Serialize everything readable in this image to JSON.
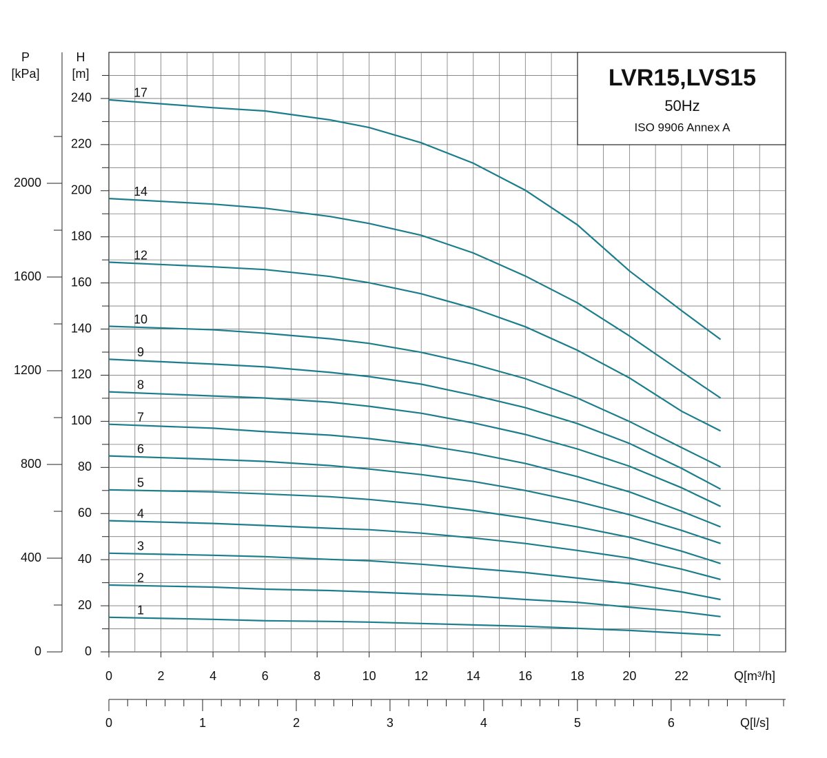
{
  "chart_data": {
    "type": "line",
    "title": "LVR15,LVS15",
    "subtitle": "50Hz",
    "note": "ISO 9906 Annex A",
    "xlabel": "Q[m³/h]",
    "ylabel": "H",
    "ylabel_unit": "[m]",
    "plabel": "P",
    "plabel_unit": "[kPa]",
    "qlabel": "Q[l/s]",
    "x": [
      0,
      4,
      6,
      8.5,
      10,
      12,
      14,
      16,
      18,
      20,
      22,
      23.5
    ],
    "color": "#1b7d8c",
    "series": [
      {
        "name": "17",
        "values": [
          239.4,
          236,
          234.6,
          230.7,
          227.4,
          220.8,
          211.9,
          200.2,
          185.2,
          165.2,
          148,
          135.5
        ]
      },
      {
        "name": "14",
        "values": [
          196.6,
          194.2,
          192.4,
          188.8,
          185.8,
          180.7,
          173,
          163,
          151.4,
          137,
          121.5,
          110.1
        ]
      },
      {
        "name": "12",
        "values": [
          169,
          167,
          165.8,
          162.8,
          160.1,
          155.3,
          149,
          141,
          130.8,
          118.8,
          104.4,
          95.8
        ]
      },
      {
        "name": "10",
        "values": [
          141.2,
          139.7,
          138.2,
          135.8,
          133.8,
          129.9,
          124.8,
          118.5,
          110.1,
          99.9,
          88.6,
          80.2
        ]
      },
      {
        "name": "9",
        "values": [
          126.9,
          124.8,
          123.6,
          121.2,
          119.4,
          116.1,
          111.3,
          105.9,
          99,
          90.4,
          79.6,
          70.6
        ]
      },
      {
        "name": "8",
        "values": [
          112.8,
          111,
          110.1,
          108.3,
          106.5,
          103.5,
          99.3,
          94.3,
          88,
          80.5,
          71.2,
          63.1
        ]
      },
      {
        "name": "7",
        "values": [
          98.7,
          97,
          95.5,
          94,
          92.5,
          89.8,
          86.2,
          81.7,
          76,
          69.4,
          61,
          54.2
        ]
      },
      {
        "name": "6",
        "values": [
          85,
          83.5,
          82.6,
          80.8,
          79.3,
          76.9,
          73.9,
          70,
          65.2,
          59.5,
          52.7,
          47
        ]
      },
      {
        "name": "5",
        "values": [
          70.3,
          69.4,
          68.5,
          67.3,
          66.1,
          64,
          61.3,
          58,
          54.2,
          49.7,
          43.7,
          38.3
        ]
      },
      {
        "name": "4",
        "values": [
          56.9,
          55.7,
          54.8,
          53.6,
          53,
          51.5,
          49.4,
          47,
          44,
          40.7,
          35.9,
          31.4
        ]
      },
      {
        "name": "3",
        "values": [
          42.8,
          41.9,
          41.3,
          40.1,
          39.5,
          38,
          36.2,
          34.4,
          32,
          29.6,
          26,
          22.7
        ]
      },
      {
        "name": "2",
        "values": [
          29,
          28.1,
          27.2,
          26.6,
          26,
          25.1,
          24.2,
          22.7,
          21.5,
          19.4,
          17.4,
          15.3
        ]
      },
      {
        "name": "1",
        "values": [
          15,
          14.1,
          13.5,
          13.2,
          12.9,
          12.3,
          11.7,
          11.1,
          10.2,
          9.3,
          8.1,
          7.2
        ]
      }
    ],
    "xlim": [
      0,
      26
    ],
    "xticks": [
      0,
      2,
      4,
      6,
      8,
      10,
      12,
      14,
      16,
      18,
      20,
      22
    ],
    "xgrid": [
      1,
      2,
      3,
      4,
      5,
      6,
      7,
      8,
      9,
      10,
      11,
      12,
      13,
      14,
      15,
      16,
      17,
      18,
      19,
      20,
      21,
      22,
      23,
      24,
      25
    ],
    "ylim": [
      0,
      260
    ],
    "yticks": [
      0,
      20,
      40,
      60,
      80,
      100,
      120,
      140,
      160,
      180,
      200,
      220,
      240
    ],
    "yminor": [
      10,
      30,
      50,
      70,
      90,
      110,
      130,
      150,
      170,
      190,
      210,
      230,
      250
    ],
    "plim": [
      0,
      2559
    ],
    "pticks": [
      0,
      400,
      800,
      1200,
      1600,
      2000
    ],
    "pminor": [
      200,
      600,
      1000,
      1400,
      1800,
      2200
    ],
    "qlim": [
      0,
      7.222
    ],
    "qticks": [
      0,
      1,
      2,
      3,
      4,
      5,
      6
    ],
    "qminor": [
      0.2,
      0.4,
      0.6,
      0.8,
      1.2,
      1.4,
      1.6,
      1.8,
      2.2,
      2.4,
      2.6,
      2.8,
      3.2,
      3.4,
      3.6,
      3.8,
      4.2,
      4.4,
      4.6,
      4.8,
      5.2,
      5.4,
      5.6,
      5.8,
      6.2,
      6.4,
      6.6,
      6.8,
      7.2
    ],
    "grid": true
  }
}
